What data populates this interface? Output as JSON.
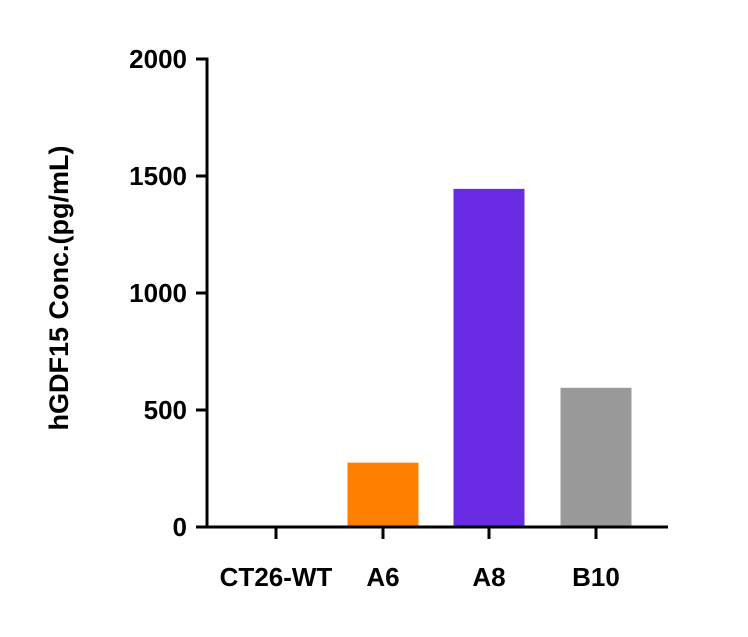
{
  "chart_data": {
    "type": "bar",
    "title": "",
    "xlabel": "",
    "ylabel": "hGDF15 Conc.(pg/mL)",
    "categories": [
      "CT26-WT",
      "A6",
      "A8",
      "B10"
    ],
    "values": [
      0,
      275,
      1445,
      595
    ],
    "colors": [
      "#000000",
      "#FF8000",
      "#6A2BE5",
      "#999999"
    ],
    "ylim": [
      0,
      2000
    ],
    "yticks": [
      0,
      500,
      1000,
      1500,
      2000
    ],
    "ytick_labels": [
      "0",
      "500",
      "1000",
      "1500",
      "2000"
    ],
    "grid": false,
    "legend": "none"
  }
}
